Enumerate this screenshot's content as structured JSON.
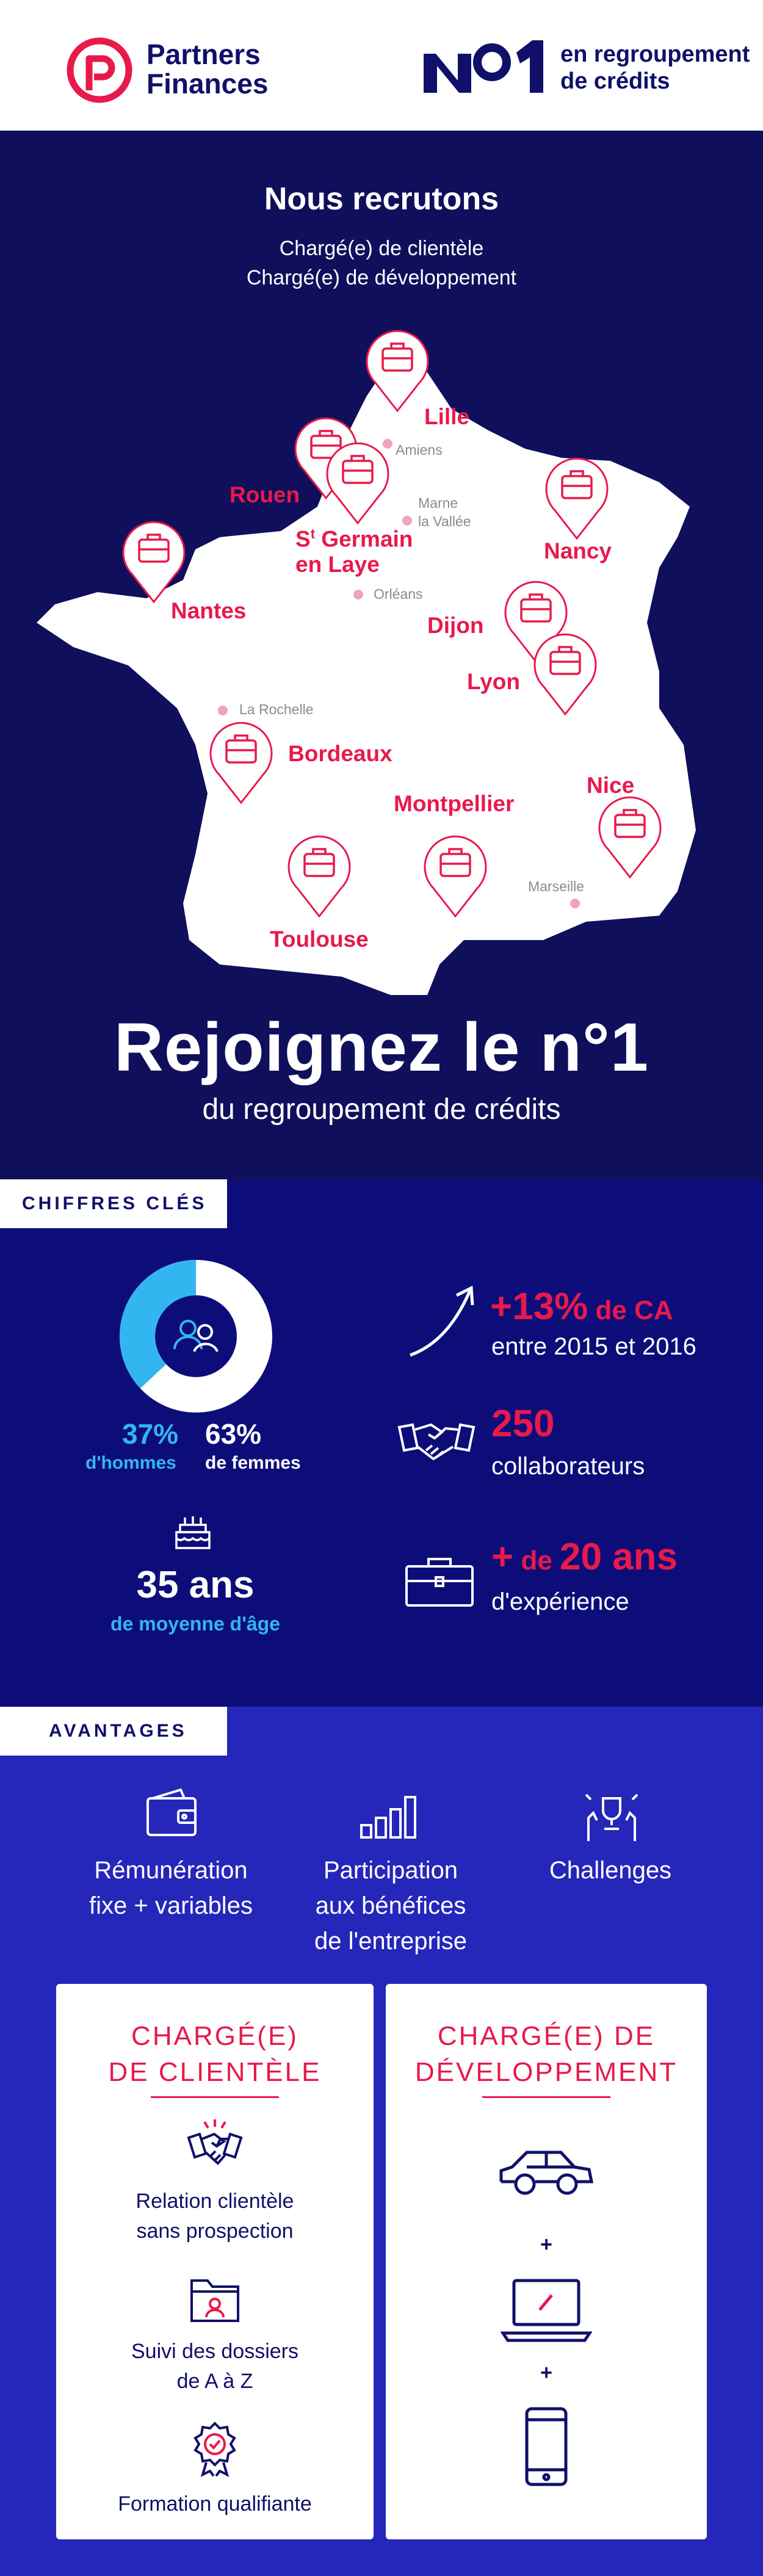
{
  "header": {
    "brand_line1": "Partners",
    "brand_line2": "Finances",
    "no1_tagline_line1": "en regroupement",
    "no1_tagline_line2": "de crédits"
  },
  "hero": {
    "title": "Nous recrutons",
    "job1": "Chargé(e) de clientèle",
    "job2": "Chargé(e) de développement"
  },
  "map": {
    "cities": {
      "lille": "Lille",
      "rouen": "Rouen",
      "st_germain_a": "S",
      "st_germain_sup": "t",
      "st_germain_b": " Germain",
      "en_laye": "en Laye",
      "nancy": "Nancy",
      "nantes": "Nantes",
      "dijon": "Dijon",
      "lyon": "Lyon",
      "bordeaux": "Bordeaux",
      "montpellier": "Montpellier",
      "nice": "Nice",
      "toulouse": "Toulouse"
    },
    "towns": {
      "amiens": "Amiens",
      "marne_1": "Marne",
      "marne_2": "la Vallée",
      "orleans": "Orléans",
      "la_rochelle": "La Rochelle",
      "marseille": "Marseille"
    }
  },
  "join": {
    "title": "Rejoignez le n°1",
    "subtitle": "du regroupement de crédits"
  },
  "key_figures": {
    "tag": "CHIFFRES CLÉS",
    "gender": {
      "men_pct": 37,
      "men_value": "37%",
      "men_label": "d'hommes",
      "women_value": "63%",
      "women_label": "de femmes"
    },
    "age_value": "35 ans",
    "age_label": "de moyenne d'âge",
    "ca_value": "+13%",
    "ca_unit": " de CA",
    "ca_sub": "entre 2015 et 2016",
    "staff_value": "250",
    "staff_sub": "collaborateurs",
    "exp_plus": "+",
    "exp_de": " de ",
    "exp_value": "20 ans",
    "exp_sub": "d'expérience",
    "colors": {
      "men": "#33b5f0",
      "women": "#ffffff",
      "accent": "#e8194b"
    }
  },
  "advantages": {
    "tag": "AVANTAGES",
    "remuneration_1": "Rémunération",
    "remuneration_2": "fixe + variables",
    "participation_1": "Participation",
    "participation_2": "aux bénéfices",
    "participation_3": "de l'entreprise",
    "challenges": "Challenges"
  },
  "cards": {
    "client": {
      "title_1": "CHARGÉ(E)",
      "title_2": "DE CLIENTÈLE",
      "f1_1": "Relation clientèle",
      "f1_2": "sans prospection",
      "f2_1": "Suivi des dossiers",
      "f2_2": "de A à Z",
      "f3": "Formation qualifiante"
    },
    "dev": {
      "title_1": "CHARGÉ(E) DE",
      "title_2": "DÉVELOPPEMENT",
      "plus1": "+",
      "plus2": "+"
    }
  },
  "icons": [
    "pin-briefcase-icon",
    "users-icon",
    "cake-icon",
    "growth-arrow-icon",
    "handshake-icon",
    "briefcase-icon",
    "wallet-icon",
    "bar-chart-icon",
    "trophy-hands-icon",
    "folder-user-icon",
    "medal-icon",
    "car-icon",
    "laptop-icon",
    "smartphone-icon"
  ]
}
